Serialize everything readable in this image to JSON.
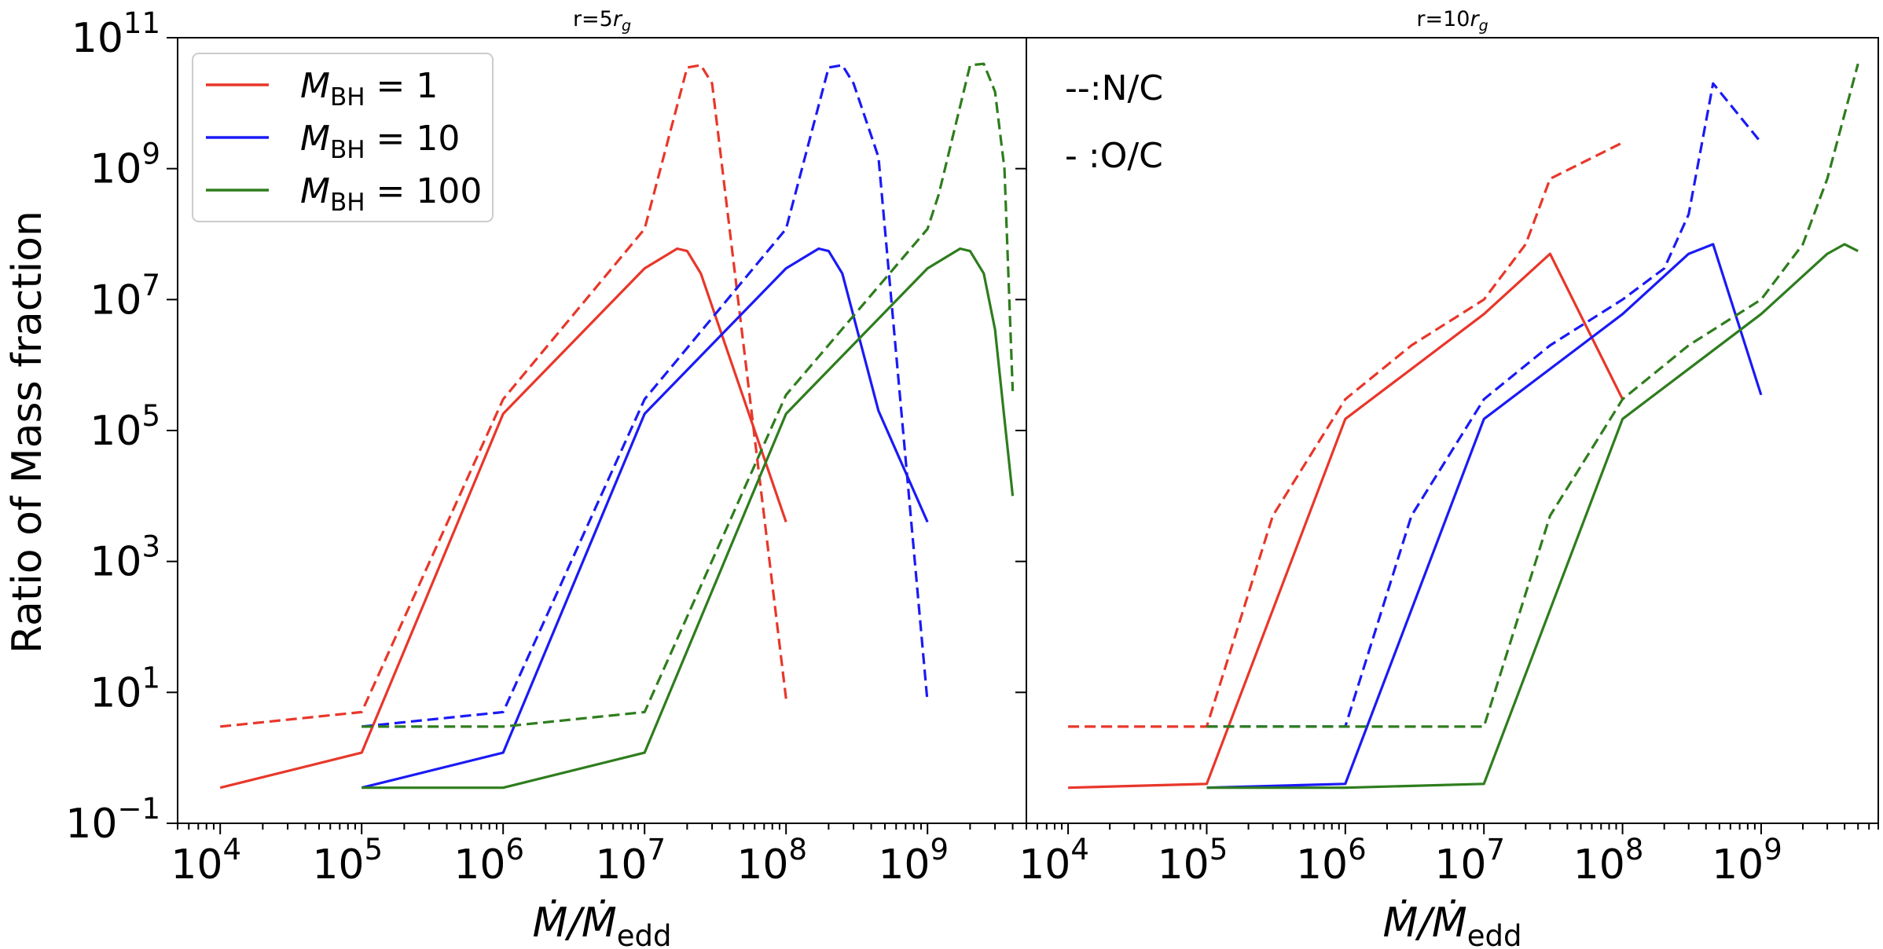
{
  "figure": {
    "ylabel": "Ratio of Mass fraction",
    "xlabel": "Ṁ/Ṁ_edd",
    "xlabel_main": "Ṁ/Ṁ",
    "xlabel_sub": "edd",
    "ytick_base": "10",
    "xtick_base": "10",
    "ytick_exps": [
      "−1",
      "1",
      "3",
      "5",
      "7",
      "9",
      "11"
    ],
    "xtick_exps": [
      "4",
      "5",
      "6",
      "7",
      "8",
      "9"
    ],
    "colors": {
      "red": "#e8372a",
      "blue": "#1a1af5",
      "green": "#2e7d1d",
      "axes": "#000000"
    }
  },
  "legend": [
    {
      "label_main": "M",
      "label_sub": "BH",
      "label_value": " = 1",
      "color": "#e8372a"
    },
    {
      "label_main": "M",
      "label_sub": "BH",
      "label_value": " = 10",
      "color": "#1a1af5"
    },
    {
      "label_main": "M",
      "label_sub": "BH",
      "label_value": " = 100",
      "color": "#2e7d1d"
    }
  ],
  "annotations": {
    "dashed": "--:N/C",
    "solid": "- :O/C"
  },
  "chart_data": [
    {
      "type": "line",
      "title": "r=5r_g",
      "title_main": "r=5",
      "title_var": "r",
      "title_sub": "g",
      "xscale": "log",
      "yscale": "log",
      "xlim": [
        5000.0,
        5000000000.0
      ],
      "ylim": [
        0.1,
        100000000000.0
      ],
      "series": [
        {
          "name": "M_BH = 1 (N/C)",
          "color": "#e8372a",
          "style": "dashed",
          "x": [
            10000.0,
            100000.0,
            1000000.0,
            10000000.0,
            20000000.0,
            25000000.0,
            30000000.0,
            100000000.0
          ],
          "y": [
            3,
            5,
            300000.0,
            120000000.0,
            35000000000.0,
            38000000000.0,
            20000000000.0,
            8
          ]
        },
        {
          "name": "M_BH = 1 (O/C)",
          "color": "#e8372a",
          "style": "solid",
          "x": [
            10000.0,
            100000.0,
            1000000.0,
            10000000.0,
            17000000.0,
            20000000.0,
            25000000.0,
            100000000.0
          ],
          "y": [
            0.35,
            1.2,
            180000.0,
            30000000.0,
            60000000.0,
            55000000.0,
            25000000.0,
            4000.0
          ]
        },
        {
          "name": "M_BH = 10 (N/C)",
          "color": "#1a1af5",
          "style": "dashed",
          "x": [
            100000.0,
            1000000.0,
            10000000.0,
            100000000.0,
            200000000.0,
            250000000.0,
            300000000.0,
            450000000.0,
            1000000000.0
          ],
          "y": [
            3,
            5,
            300000.0,
            120000000.0,
            35000000000.0,
            38000000000.0,
            20000000000.0,
            1500000000.0,
            7
          ]
        },
        {
          "name": "M_BH = 10 (O/C)",
          "color": "#1a1af5",
          "style": "solid",
          "x": [
            100000.0,
            1000000.0,
            10000000.0,
            100000000.0,
            170000000.0,
            200000000.0,
            250000000.0,
            450000000.0,
            1000000000.0
          ],
          "y": [
            0.35,
            1.2,
            180000.0,
            30000000.0,
            60000000.0,
            55000000.0,
            25000000.0,
            200000.0,
            4000.0
          ]
        },
        {
          "name": "M_BH = 100 (N/C)",
          "color": "#2e7d1d",
          "style": "dashed",
          "x": [
            100000.0,
            1000000.0,
            10000000.0,
            100000000.0,
            1000000000.0,
            1200000000.0,
            2000000000.0,
            2500000000.0,
            3000000000.0,
            3500000000.0,
            4000000000.0
          ],
          "y": [
            3,
            3,
            5,
            350000.0,
            120000000.0,
            400000000.0,
            38000000000.0,
            40000000000.0,
            15000000000.0,
            1000000000.0,
            400000.0
          ]
        },
        {
          "name": "M_BH = 100 (O/C)",
          "color": "#2e7d1d",
          "style": "solid",
          "x": [
            100000.0,
            1000000.0,
            10000000.0,
            100000000.0,
            1000000000.0,
            1700000000.0,
            2000000000.0,
            2500000000.0,
            3000000000.0,
            3500000000.0,
            4000000000.0
          ],
          "y": [
            0.35,
            0.35,
            1.2,
            180000.0,
            30000000.0,
            60000000.0,
            55000000.0,
            25000000.0,
            3500000.0,
            150000.0,
            10000.0
          ]
        }
      ]
    },
    {
      "type": "line",
      "title": "r=10r_g",
      "title_main": "r=10",
      "title_var": "r",
      "title_sub": "g",
      "xscale": "log",
      "yscale": "log",
      "xlim": [
        5000.0,
        7000000000.0
      ],
      "ylim": [
        0.1,
        100000000000.0
      ],
      "series": [
        {
          "name": "M_BH = 1 (N/C)",
          "color": "#e8372a",
          "style": "dashed",
          "x": [
            10000.0,
            100000.0,
            300000.0,
            1000000.0,
            3000000.0,
            10000000.0,
            20000000.0,
            30000000.0,
            100000000.0
          ],
          "y": [
            3,
            3,
            5000.0,
            300000.0,
            2000000.0,
            10000000.0,
            70000000.0,
            700000000.0,
            2500000000.0
          ]
        },
        {
          "name": "M_BH = 1 (O/C)",
          "color": "#e8372a",
          "style": "solid",
          "x": [
            10000.0,
            100000.0,
            1000000.0,
            10000000.0,
            30000000.0,
            100000000.0
          ],
          "y": [
            0.35,
            0.4,
            150000.0,
            6000000.0,
            50000000.0,
            300000.0
          ]
        },
        {
          "name": "M_BH = 10 (N/C)",
          "color": "#1a1af5",
          "style": "dashed",
          "x": [
            100000.0,
            1000000.0,
            3000000.0,
            10000000.0,
            30000000.0,
            100000000.0,
            200000000.0,
            300000000.0,
            450000000.0,
            1000000000.0
          ],
          "y": [
            3,
            3,
            5000.0,
            300000.0,
            2000000.0,
            10000000.0,
            30000000.0,
            200000000.0,
            20000000000.0,
            2500000000.0
          ]
        },
        {
          "name": "M_BH = 10 (O/C)",
          "color": "#1a1af5",
          "style": "solid",
          "x": [
            100000.0,
            1000000.0,
            10000000.0,
            100000000.0,
            300000000.0,
            450000000.0,
            1000000000.0
          ],
          "y": [
            0.35,
            0.4,
            150000.0,
            6000000.0,
            50000000.0,
            70000000.0,
            350000.0
          ]
        },
        {
          "name": "M_BH = 100 (N/C)",
          "color": "#2e7d1d",
          "style": "dashed",
          "x": [
            100000.0,
            1000000.0,
            10000000.0,
            30000000.0,
            100000000.0,
            300000000.0,
            1000000000.0,
            2000000000.0,
            3000000000.0,
            5000000000.0
          ],
          "y": [
            3,
            3,
            3,
            5000.0,
            300000.0,
            2000000.0,
            10000000.0,
            70000000.0,
            700000000.0,
            40000000000.0
          ]
        },
        {
          "name": "M_BH = 100 (O/C)",
          "color": "#2e7d1d",
          "style": "solid",
          "x": [
            100000.0,
            1000000.0,
            10000000.0,
            100000000.0,
            1000000000.0,
            3000000000.0,
            4000000000.0,
            5000000000.0
          ],
          "y": [
            0.35,
            0.35,
            0.4,
            150000.0,
            6000000.0,
            50000000.0,
            70000000.0,
            55000000.0
          ]
        }
      ]
    }
  ]
}
